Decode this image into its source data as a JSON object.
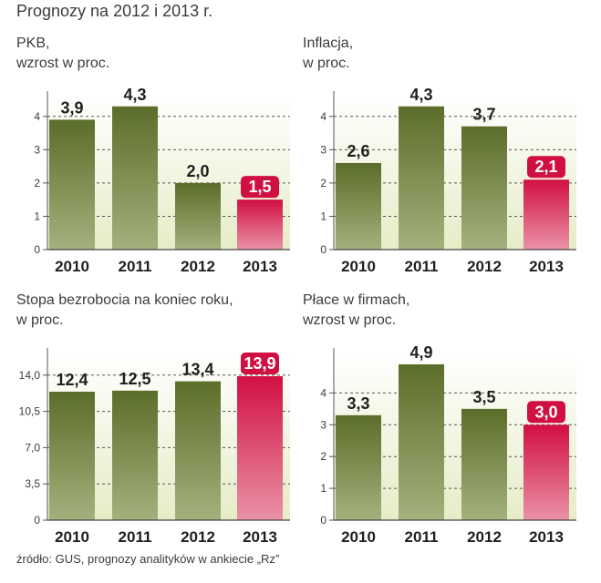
{
  "title": "Prognozy na 2012 i 2013 r.",
  "source": "źródło: GUS, prognozy analityków w ankiecie „Rz”",
  "colors": {
    "bar_top": "#5b6d2a",
    "bar_bottom": "#a5b17d",
    "highlight_top": "#d11042",
    "highlight_bottom": "#ea92a6",
    "background_top": "#ffffff",
    "background_bottom": "#e7ecc7"
  },
  "chart_data": [
    {
      "type": "bar",
      "title_lines": [
        "PKB,",
        "wzrost w proc."
      ],
      "categories": [
        "2010",
        "2011",
        "2012",
        "2013"
      ],
      "values": [
        3.9,
        4.3,
        2.0,
        1.5
      ],
      "value_labels": [
        "3,9",
        "4,3",
        "2,0",
        "1,5"
      ],
      "yticks": [
        0,
        1,
        2,
        3,
        4
      ],
      "ytick_labels": [
        "0",
        "1",
        "2",
        "3",
        "4"
      ],
      "ylim": [
        0,
        4.65
      ],
      "highlight_index": 3
    },
    {
      "type": "bar",
      "title_lines": [
        "Inflacja,",
        "w proc."
      ],
      "categories": [
        "2010",
        "2011",
        "2012",
        "2013"
      ],
      "values": [
        2.6,
        4.3,
        3.7,
        2.1
      ],
      "value_labels": [
        "2,6",
        "4,3",
        "3,7",
        "2,1"
      ],
      "yticks": [
        0,
        1,
        2,
        3,
        4
      ],
      "ytick_labels": [
        "0",
        "1",
        "2",
        "3",
        "4"
      ],
      "ylim": [
        0,
        4.65
      ],
      "highlight_index": 3
    },
    {
      "type": "bar",
      "title_lines": [
        "Stopa bezrobocia na koniec roku,",
        "w proc."
      ],
      "categories": [
        "2010",
        "2011",
        "2012",
        "2013"
      ],
      "values": [
        12.4,
        12.5,
        13.4,
        13.9
      ],
      "value_labels": [
        "12,4",
        "12,5",
        "13,4",
        "13,9"
      ],
      "yticks": [
        0,
        3.5,
        7.0,
        10.5,
        14.0
      ],
      "ytick_labels": [
        "0",
        "3,5",
        "7,0",
        "10,5",
        "14,0"
      ],
      "ylim": [
        0,
        16.27
      ],
      "highlight_index": 3
    },
    {
      "type": "bar",
      "title_lines": [
        "Płace w firmach,",
        "wzrost w proc."
      ],
      "categories": [
        "2010",
        "2011",
        "2012",
        "2013"
      ],
      "values": [
        3.3,
        4.9,
        3.5,
        3.0
      ],
      "value_labels": [
        "3,3",
        "4,9",
        "3,5",
        "3,0"
      ],
      "yticks": [
        0,
        1,
        2,
        3,
        4
      ],
      "ytick_labels": [
        "0",
        "1",
        "2",
        "3",
        "4"
      ],
      "ylim": [
        0,
        5.3
      ],
      "highlight_index": 3
    }
  ]
}
